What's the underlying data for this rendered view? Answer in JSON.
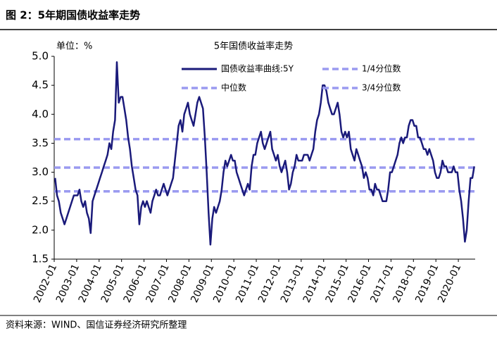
{
  "header": "图 2：5年期国债收益率走势",
  "source": "资料来源：WIND、国信证券经济研究所整理",
  "chart_data": {
    "type": "line",
    "title": "5年国债收益率走势",
    "unit_label": "单位：%",
    "x": [
      "2002-01",
      "2002-02",
      "2002-03",
      "2002-04",
      "2002-05",
      "2002-06",
      "2002-07",
      "2002-08",
      "2002-09",
      "2002-10",
      "2002-11",
      "2002-12",
      "2003-01",
      "2003-02",
      "2003-03",
      "2003-04",
      "2003-05",
      "2003-06",
      "2003-07",
      "2003-08",
      "2003-09",
      "2003-10",
      "2003-11",
      "2003-12",
      "2004-01",
      "2004-02",
      "2004-03",
      "2004-04",
      "2004-05",
      "2004-06",
      "2004-07",
      "2004-08",
      "2004-09",
      "2004-10",
      "2004-11",
      "2004-12",
      "2005-01",
      "2005-02",
      "2005-03",
      "2005-04",
      "2005-05",
      "2005-06",
      "2005-07",
      "2005-08",
      "2005-09",
      "2005-10",
      "2005-11",
      "2005-12",
      "2006-01",
      "2006-02",
      "2006-03",
      "2006-04",
      "2006-05",
      "2006-06",
      "2006-07",
      "2006-08",
      "2006-09",
      "2006-10",
      "2006-11",
      "2006-12",
      "2007-01",
      "2007-02",
      "2007-03",
      "2007-04",
      "2007-05",
      "2007-06",
      "2007-07",
      "2007-08",
      "2007-09",
      "2007-10",
      "2007-11",
      "2007-12",
      "2008-01",
      "2008-02",
      "2008-03",
      "2008-04",
      "2008-05",
      "2008-06",
      "2008-07",
      "2008-08",
      "2008-09",
      "2008-10",
      "2008-11",
      "2008-12",
      "2009-01",
      "2009-02",
      "2009-03",
      "2009-04",
      "2009-05",
      "2009-06",
      "2009-07",
      "2009-08",
      "2009-09",
      "2009-10",
      "2009-11",
      "2009-12",
      "2010-01",
      "2010-02",
      "2010-03",
      "2010-04",
      "2010-05",
      "2010-06",
      "2010-07",
      "2010-08",
      "2010-09",
      "2010-10",
      "2010-11",
      "2010-12",
      "2011-01",
      "2011-02",
      "2011-03",
      "2011-04",
      "2011-05",
      "2011-06",
      "2011-07",
      "2011-08",
      "2011-09",
      "2011-10",
      "2011-11",
      "2011-12",
      "2012-01",
      "2012-02",
      "2012-03",
      "2012-04",
      "2012-05",
      "2012-06",
      "2012-07",
      "2012-08",
      "2012-09",
      "2012-10",
      "2012-11",
      "2012-12",
      "2013-01",
      "2013-02",
      "2013-03",
      "2013-04",
      "2013-05",
      "2013-06",
      "2013-07",
      "2013-08",
      "2013-09",
      "2013-10",
      "2013-11",
      "2013-12",
      "2014-01",
      "2014-02",
      "2014-03",
      "2014-04",
      "2014-05",
      "2014-06",
      "2014-07",
      "2014-08",
      "2014-09",
      "2014-10",
      "2014-11",
      "2014-12",
      "2015-01",
      "2015-02",
      "2015-03",
      "2015-04",
      "2015-05",
      "2015-06",
      "2015-07",
      "2015-08",
      "2015-09",
      "2015-10",
      "2015-11",
      "2015-12",
      "2016-01",
      "2016-02",
      "2016-03",
      "2016-04",
      "2016-05",
      "2016-06",
      "2016-07",
      "2016-08",
      "2016-09",
      "2016-10",
      "2016-11",
      "2016-12",
      "2017-01",
      "2017-02",
      "2017-03",
      "2017-04",
      "2017-05",
      "2017-06",
      "2017-07",
      "2017-08",
      "2017-09",
      "2017-10",
      "2017-11",
      "2017-12",
      "2018-01",
      "2018-02",
      "2018-03",
      "2018-04",
      "2018-05",
      "2018-06",
      "2018-07",
      "2018-08",
      "2018-09",
      "2018-10",
      "2018-11",
      "2018-12",
      "2019-01",
      "2019-02",
      "2019-03",
      "2019-04",
      "2019-05",
      "2019-06",
      "2019-07",
      "2019-08",
      "2019-09",
      "2019-10",
      "2019-11",
      "2019-12",
      "2020-01",
      "2020-02",
      "2020-03",
      "2020-04",
      "2020-05",
      "2020-06",
      "2020-07",
      "2020-08",
      "2020-09"
    ],
    "series": [
      {
        "name": "国债收益率曲线:5Y",
        "color": "#1a1a7a",
        "values": [
          2.9,
          2.6,
          2.5,
          2.3,
          2.2,
          2.1,
          2.2,
          2.3,
          2.4,
          2.5,
          2.6,
          2.6,
          2.6,
          2.7,
          2.5,
          2.4,
          2.5,
          2.3,
          2.2,
          1.95,
          2.5,
          2.6,
          2.7,
          2.8,
          2.9,
          3.0,
          3.1,
          3.2,
          3.3,
          3.5,
          3.4,
          3.7,
          3.9,
          4.9,
          4.2,
          4.3,
          4.3,
          4.1,
          3.9,
          3.6,
          3.4,
          3.1,
          2.9,
          2.7,
          2.6,
          2.1,
          2.4,
          2.5,
          2.4,
          2.5,
          2.4,
          2.3,
          2.5,
          2.6,
          2.7,
          2.6,
          2.6,
          2.7,
          2.8,
          2.7,
          2.6,
          2.7,
          2.8,
          2.9,
          3.2,
          3.5,
          3.8,
          3.9,
          3.7,
          4.0,
          4.1,
          4.2,
          4.0,
          3.9,
          3.8,
          4.0,
          4.2,
          4.3,
          4.2,
          4.1,
          3.6,
          3.0,
          2.3,
          1.75,
          2.2,
          2.4,
          2.3,
          2.4,
          2.5,
          2.7,
          3.0,
          3.2,
          3.1,
          3.2,
          3.3,
          3.2,
          3.2,
          3.0,
          2.9,
          2.8,
          2.7,
          2.6,
          2.7,
          2.8,
          2.7,
          3.1,
          3.3,
          3.3,
          3.5,
          3.6,
          3.7,
          3.5,
          3.4,
          3.5,
          3.6,
          3.7,
          3.4,
          3.3,
          3.2,
          3.3,
          3.1,
          3.0,
          3.1,
          3.2,
          3.0,
          2.7,
          2.8,
          3.0,
          3.1,
          3.3,
          3.2,
          3.2,
          3.2,
          3.3,
          3.3,
          3.3,
          3.2,
          3.3,
          3.4,
          3.7,
          3.9,
          4.0,
          4.2,
          4.5,
          4.5,
          4.4,
          4.2,
          4.1,
          4.0,
          4.0,
          4.1,
          4.2,
          4.0,
          3.7,
          3.6,
          3.7,
          3.6,
          3.7,
          3.4,
          3.3,
          3.2,
          3.4,
          3.3,
          3.2,
          3.1,
          2.9,
          3.0,
          2.9,
          2.7,
          2.7,
          2.6,
          2.8,
          2.7,
          2.7,
          2.6,
          2.5,
          2.5,
          2.5,
          2.7,
          3.0,
          3.0,
          3.1,
          3.2,
          3.3,
          3.5,
          3.6,
          3.5,
          3.6,
          3.6,
          3.8,
          3.9,
          3.9,
          3.8,
          3.8,
          3.6,
          3.6,
          3.5,
          3.4,
          3.4,
          3.3,
          3.4,
          3.3,
          3.2,
          3.0,
          2.9,
          2.9,
          3.0,
          3.2,
          3.1,
          3.1,
          3.0,
          3.0,
          3.0,
          3.1,
          3.0,
          3.0,
          2.7,
          2.5,
          2.2,
          1.8,
          2.0,
          2.5,
          2.9,
          2.9,
          3.1
        ]
      }
    ],
    "reference_lines": [
      {
        "name": "1/4分位数",
        "value": 2.67,
        "color": "#9a9af0"
      },
      {
        "name": "中位数",
        "value": 3.08,
        "color": "#9a9af0"
      },
      {
        "name": "3/4分位数",
        "value": 3.57,
        "color": "#9a9af0"
      }
    ],
    "ylim": [
      1.5,
      5.0
    ],
    "yticks": [
      1.5,
      {
        "value": 2,
        "label": "2.0"
      },
      2.5,
      {
        "value": 3,
        "label": "3.0"
      },
      3.5,
      {
        "value": 4,
        "label": "4.0"
      },
      4.5,
      {
        "value": 5,
        "label": "5.0"
      }
    ],
    "xticks": [
      "2002-01",
      "2003-01",
      "2004-01",
      "2005-01",
      "2006-01",
      "2007-01",
      "2008-01",
      "2009-01",
      "2010-01",
      "2011-01",
      "2012-01",
      "2013-01",
      "2014-01",
      "2015-01",
      "2016-01",
      "2017-01",
      "2018-01",
      "2019-01",
      "2020-01"
    ],
    "grid": false
  }
}
